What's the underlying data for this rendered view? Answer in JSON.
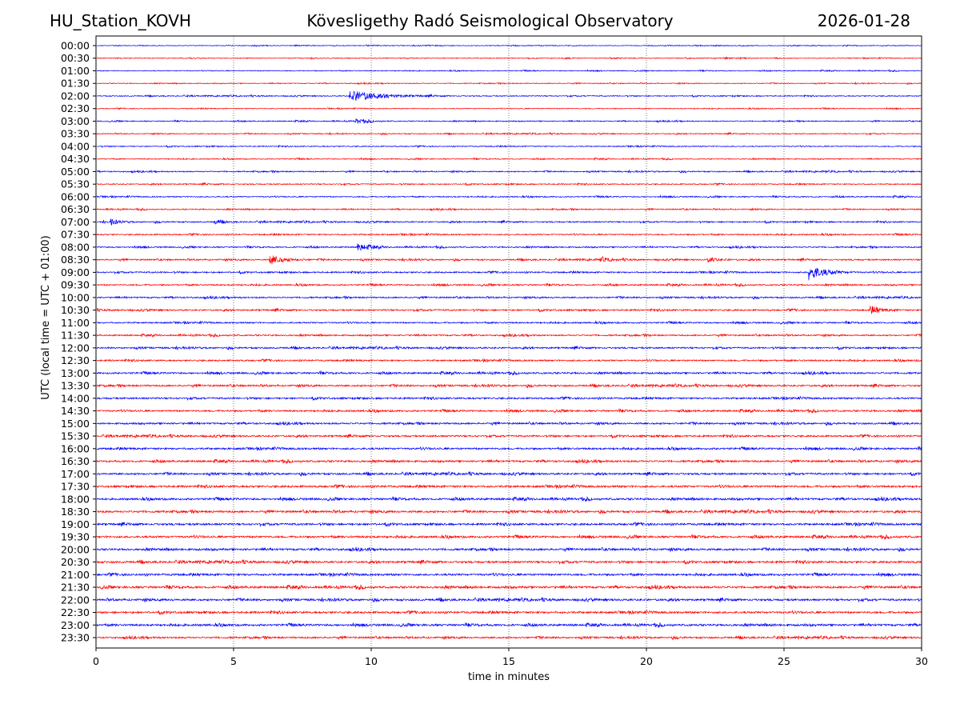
{
  "header": {
    "station": "HU_Station_KOVH",
    "title": "Kövesligethy Radó Seismological Observatory",
    "date": "2026-01-28"
  },
  "chart_data": {
    "type": "line",
    "subtype": "helicorder",
    "title": "Kövesligethy Radó Seismological Observatory",
    "xlabel": "time in minutes",
    "ylabel": "UTC (local time = UTC + 01:00)",
    "xlim": [
      0,
      30
    ],
    "x_ticks": [
      "0",
      "5",
      "10",
      "15",
      "20",
      "25",
      "30"
    ],
    "x_tick_values": [
      0,
      5,
      10,
      15,
      20,
      25,
      30
    ],
    "grid": "vertical dotted at x ticks",
    "row_labels": [
      "00:00",
      "00:30",
      "01:00",
      "01:30",
      "02:00",
      "02:30",
      "03:00",
      "03:30",
      "04:00",
      "04:30",
      "05:00",
      "05:30",
      "06:00",
      "06:30",
      "07:00",
      "07:30",
      "08:00",
      "08:30",
      "09:00",
      "09:30",
      "10:00",
      "10:30",
      "11:00",
      "11:30",
      "12:00",
      "12:30",
      "13:00",
      "13:30",
      "14:00",
      "14:30",
      "15:00",
      "15:30",
      "16:00",
      "16:30",
      "17:00",
      "17:30",
      "18:00",
      "18:30",
      "19:00",
      "19:30",
      "20:00",
      "20:30",
      "21:00",
      "21:30",
      "22:00",
      "22:30",
      "23:00",
      "23:30"
    ],
    "row_colors": [
      "#0000ff",
      "#ff0000"
    ],
    "noise_level": [
      0.25,
      0.3,
      0.3,
      0.3,
      0.35,
      0.3,
      0.35,
      0.35,
      0.35,
      0.35,
      0.4,
      0.4,
      0.4,
      0.4,
      0.45,
      0.45,
      0.45,
      0.5,
      0.5,
      0.5,
      0.5,
      0.55,
      0.5,
      0.5,
      0.55,
      0.55,
      0.6,
      0.6,
      0.6,
      0.6,
      0.6,
      0.6,
      0.65,
      0.65,
      0.65,
      0.7,
      0.7,
      0.7,
      0.7,
      0.7,
      0.7,
      0.7,
      0.7,
      0.75,
      0.7,
      0.7,
      0.7,
      0.6
    ],
    "events": [
      {
        "row": "02:00",
        "start_min": 9.2,
        "duration_min": 3.5,
        "amplitude": 3.2
      },
      {
        "row": "03:00",
        "start_min": 9.4,
        "duration_min": 1.5,
        "amplitude": 1.3
      },
      {
        "row": "07:00",
        "start_min": 0.5,
        "duration_min": 0.9,
        "amplitude": 1.6
      },
      {
        "row": "07:00",
        "start_min": 4.3,
        "duration_min": 0.8,
        "amplitude": 1.2
      },
      {
        "row": "08:00",
        "start_min": 9.5,
        "duration_min": 1.3,
        "amplitude": 2.2
      },
      {
        "row": "08:30",
        "start_min": 6.3,
        "duration_min": 1.5,
        "amplitude": 3.0
      },
      {
        "row": "08:30",
        "start_min": 18.3,
        "duration_min": 1.0,
        "amplitude": 1.2
      },
      {
        "row": "08:30",
        "start_min": 22.2,
        "duration_min": 1.2,
        "amplitude": 1.4
      },
      {
        "row": "09:00",
        "start_min": 25.9,
        "duration_min": 1.8,
        "amplitude": 4.5
      },
      {
        "row": "10:30",
        "start_min": 28.1,
        "duration_min": 1.2,
        "amplitude": 2.4
      }
    ]
  },
  "colors": {
    "blue_trace": "#0000ff",
    "red_trace": "#ff0000",
    "grid": "#555555",
    "frame": "#000000"
  }
}
